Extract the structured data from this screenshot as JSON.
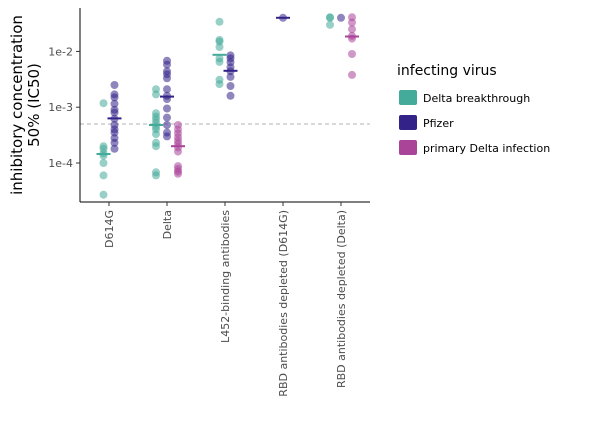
{
  "chart_data": {
    "type": "scatter",
    "title": "",
    "xlabel": "",
    "ylabel": [
      "inhibitory concentration",
      "50% (IC50)"
    ],
    "y_scale": "log10",
    "ylim": [
      2e-05,
      0.06
    ],
    "y_ticks": [
      0.0001,
      0.001,
      0.01
    ],
    "y_tick_labels": [
      "1e-4",
      "1e-3",
      "1e-2"
    ],
    "categories": [
      "D614G",
      "Delta",
      "L452-binding antibodies",
      "RBD antibodies depleted (D614G)",
      "RBD antibodies depleted (Delta)"
    ],
    "reference_line": 0.0005,
    "grid": false,
    "legend": {
      "title": "infecting virus",
      "placement": "right",
      "entries": [
        "Delta breakthrough",
        "Pfizer",
        "primary Delta infection"
      ]
    },
    "series": [
      {
        "name": "Delta breakthrough",
        "color": "#44aa99",
        "points": {
          "D614G": [
            0.00118,
            0.0002,
            0.00018,
            0.00015,
            0.000135,
            0.0001,
            6e-05,
            2.7e-05
          ],
          "Delta": [
            0.0021,
            0.0017,
            0.00078,
            0.00068,
            0.0006,
            0.00052,
            0.00045,
            0.0004,
            0.00033,
            0.00023,
            0.0002,
            6.8e-05,
            6e-05
          ],
          "L452-binding antibodies": [
            0.034,
            0.016,
            0.015,
            0.012,
            0.0075,
            0.0065,
            0.0031,
            0.0026
          ],
          "RBD antibodies depleted (D614G)": [],
          "RBD antibodies depleted (Delta)": [
            0.041,
            0.04,
            0.03
          ]
        },
        "medians": {
          "D614G": 0.000145,
          "Delta": 0.00048,
          "L452-binding antibodies": 0.0087
        }
      },
      {
        "name": "Pfizer",
        "color": "#332288",
        "points": {
          "D614G": [
            0.0025,
            0.0017,
            0.0015,
            0.00115,
            0.0009,
            0.0008,
            0.00062,
            0.00048,
            0.0004,
            0.00035,
            0.00028,
            0.00023,
            0.00018
          ],
          "Delta": [
            0.0068,
            0.0058,
            0.0044,
            0.0039,
            0.0033,
            0.0021,
            0.0016,
            0.0014,
            0.00095,
            0.00065,
            0.00048,
            0.00035,
            0.0003
          ],
          "L452-binding antibodies": [
            0.0085,
            0.0075,
            0.0064,
            0.0052,
            0.0044,
            0.0035,
            0.0024,
            0.0016
          ],
          "RBD antibodies depleted (D614G)": [
            0.04
          ],
          "RBD antibodies depleted (Delta)": [
            0.04
          ]
        },
        "medians": {
          "D614G": 0.00063,
          "Delta": 0.00155,
          "L452-binding antibodies": 0.0045,
          "RBD antibodies depleted (D614G)": 0.04
        }
      },
      {
        "name": "primary Delta infection",
        "color": "#aa4499",
        "points": {
          "D614G": [],
          "Delta": [
            0.00048,
            0.0004,
            0.00034,
            0.00029,
            0.00025,
            0.00022,
            0.00019,
            0.00016,
            8.8e-05,
            7.8e-05,
            7e-05,
            6.4e-05
          ],
          "L452-binding antibodies": [],
          "RBD antibodies depleted (D614G)": [],
          "RBD antibodies depleted (Delta)": [
            0.041,
            0.033,
            0.025,
            0.019,
            0.017,
            0.009,
            0.0038
          ]
        },
        "medians": {
          "Delta": 0.0002,
          "RBD antibodies depleted (Delta)": 0.0185
        }
      }
    ]
  }
}
